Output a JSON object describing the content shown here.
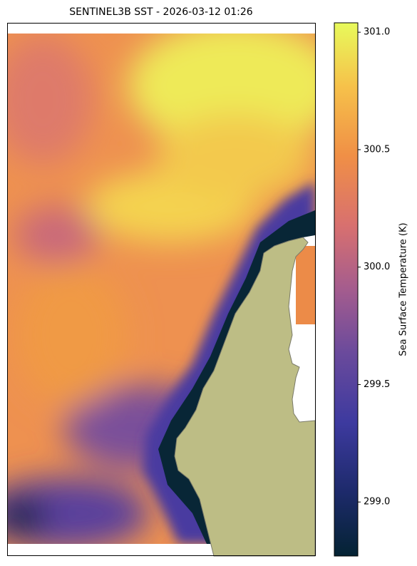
{
  "chart_data": {
    "type": "heatmap",
    "title": "SENTINEL3B SST - 2026-03-12 01:26",
    "colorbar": {
      "label": "Sea Surface Temperature (K)",
      "clim": [
        298.77,
        301.04
      ],
      "ticks": [
        {
          "value": 299.0,
          "label": "299.0"
        },
        299.5,
        {
          "value": 300.0,
          "label": "300.0"
        },
        300.5,
        {
          "value": 301.0,
          "label": "301.0"
        }
      ]
    }
  }
}
